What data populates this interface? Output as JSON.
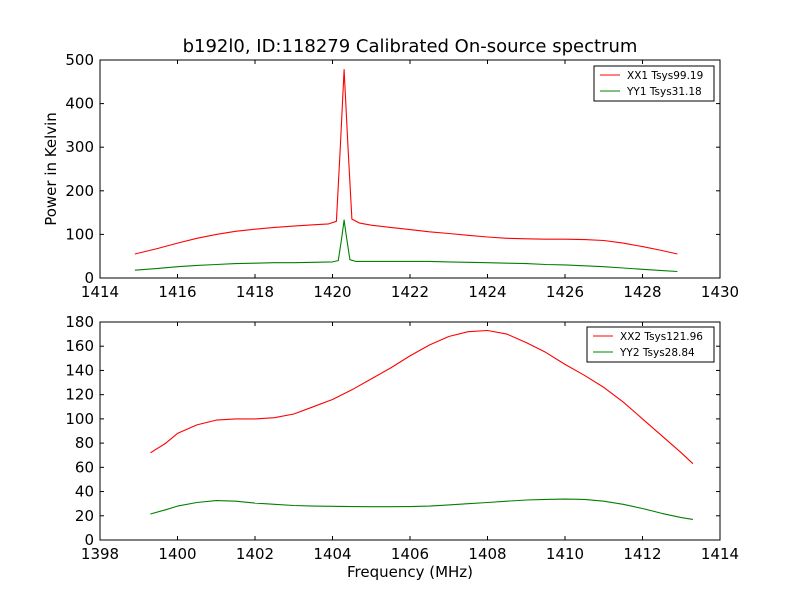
{
  "title": "b192l0, ID:118279 Calibrated On-source spectrum",
  "colors": {
    "xx": "#ff0000",
    "yy": "#008000",
    "axes": "#000000",
    "background": "#ffffff"
  },
  "chart_data": [
    {
      "type": "line",
      "title": "b192l0, ID:118279 Calibrated On-source spectrum",
      "xlabel": "",
      "ylabel": "Power in Kelvin",
      "xlim": [
        1414,
        1430
      ],
      "ylim": [
        0,
        500
      ],
      "x_ticks": [
        "1414",
        "1416",
        "1418",
        "1420",
        "1422",
        "1424",
        "1426",
        "1428",
        "1430"
      ],
      "y_ticks": [
        "0",
        "100",
        "200",
        "300",
        "400",
        "500"
      ],
      "grid": false,
      "legend_position": "top-right",
      "series": [
        {
          "name": "XX1 Tsys99.19",
          "color": "#ff0000",
          "x": [
            1414.9,
            1415.5,
            1416.0,
            1416.5,
            1417.0,
            1417.5,
            1418.0,
            1418.5,
            1419.0,
            1419.5,
            1419.9,
            1420.1,
            1420.2,
            1420.3,
            1420.4,
            1420.5,
            1420.7,
            1421.0,
            1421.5,
            1422.0,
            1422.5,
            1423.0,
            1423.5,
            1424.0,
            1424.5,
            1425.0,
            1425.5,
            1426.0,
            1426.5,
            1427.0,
            1427.5,
            1428.0,
            1428.5,
            1428.9
          ],
          "y": [
            55,
            68,
            80,
            91,
            100,
            107,
            112,
            116,
            119,
            122,
            124,
            130,
            300,
            478,
            300,
            135,
            126,
            121,
            116,
            111,
            106,
            102,
            98,
            94,
            91,
            90,
            89,
            89,
            88,
            86,
            80,
            72,
            63,
            55
          ]
        },
        {
          "name": "YY1 Tsys31.18",
          "color": "#008000",
          "x": [
            1414.9,
            1415.5,
            1416.0,
            1416.5,
            1417.0,
            1417.5,
            1418.0,
            1418.5,
            1419.0,
            1419.5,
            1420.0,
            1420.15,
            1420.25,
            1420.3,
            1420.35,
            1420.45,
            1420.6,
            1421.0,
            1421.5,
            1422.0,
            1422.5,
            1423.0,
            1423.5,
            1424.0,
            1424.5,
            1425.0,
            1425.5,
            1426.0,
            1426.5,
            1427.0,
            1427.5,
            1428.0,
            1428.5,
            1428.9
          ],
          "y": [
            18,
            22,
            26,
            29,
            31,
            33,
            34,
            35,
            35,
            36,
            37,
            40,
            100,
            133,
            100,
            42,
            38,
            38,
            38,
            38,
            38,
            37,
            36,
            35,
            34,
            33,
            31,
            30,
            28,
            26,
            23,
            20,
            17,
            15
          ]
        }
      ]
    },
    {
      "type": "line",
      "title": "",
      "xlabel": "Frequency (MHz)",
      "ylabel": "",
      "xlim": [
        1398,
        1414
      ],
      "ylim": [
        0,
        180
      ],
      "x_ticks": [
        "1398",
        "1400",
        "1402",
        "1404",
        "1406",
        "1408",
        "1410",
        "1412",
        "1414"
      ],
      "y_ticks": [
        "0",
        "20",
        "40",
        "60",
        "80",
        "100",
        "120",
        "140",
        "160",
        "180"
      ],
      "grid": false,
      "legend_position": "top-right",
      "series": [
        {
          "name": "XX2 Tsys121.96",
          "color": "#ff0000",
          "x": [
            1399.3,
            1399.7,
            1400.0,
            1400.5,
            1401.0,
            1401.5,
            1402.0,
            1402.5,
            1403.0,
            1403.5,
            1404.0,
            1404.5,
            1405.0,
            1405.5,
            1406.0,
            1406.5,
            1407.0,
            1407.5,
            1408.0,
            1408.5,
            1409.0,
            1409.5,
            1410.0,
            1410.5,
            1411.0,
            1411.5,
            1412.0,
            1412.5,
            1413.0,
            1413.3
          ],
          "y": [
            72,
            80,
            88,
            95,
            99,
            100,
            100,
            101,
            104,
            110,
            116,
            124,
            133,
            142,
            152,
            161,
            168,
            172,
            173,
            170,
            163,
            155,
            145,
            136,
            126,
            114,
            100,
            86,
            72,
            63
          ]
        },
        {
          "name": "YY2 Tsys28.84",
          "color": "#008000",
          "x": [
            1399.3,
            1399.7,
            1400.0,
            1400.5,
            1401.0,
            1401.5,
            1402.0,
            1402.5,
            1403.0,
            1403.5,
            1404.0,
            1404.5,
            1405.0,
            1405.5,
            1406.0,
            1406.5,
            1407.0,
            1407.5,
            1408.0,
            1408.5,
            1409.0,
            1409.5,
            1410.0,
            1410.5,
            1411.0,
            1411.5,
            1412.0,
            1412.5,
            1413.0,
            1413.3
          ],
          "y": [
            21.5,
            25,
            28,
            31,
            32.5,
            32,
            30.5,
            29.5,
            28.5,
            28,
            27.8,
            27.6,
            27.5,
            27.5,
            27.6,
            28,
            29,
            30,
            31,
            32,
            33,
            33.5,
            33.8,
            33.5,
            32,
            29.5,
            26,
            22,
            18.5,
            17
          ]
        }
      ]
    }
  ]
}
